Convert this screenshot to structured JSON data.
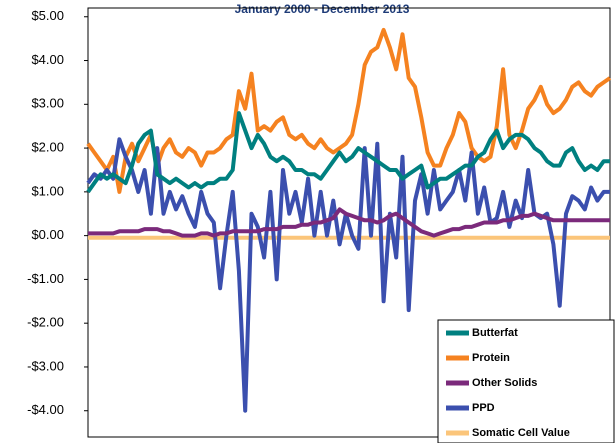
{
  "chart_data": {
    "type": "line",
    "title": "January 2000 - December 2013",
    "categories": [
      null,
      null,
      null,
      null,
      null,
      null,
      null,
      null,
      null,
      null,
      null,
      null,
      null,
      null,
      null,
      null,
      null,
      null,
      null,
      null,
      null,
      null,
      null,
      null,
      null,
      null,
      null,
      null,
      null,
      null,
      null,
      null,
      null,
      null,
      null,
      null,
      null,
      null,
      null,
      null,
      null,
      null,
      null,
      null,
      null,
      null,
      null,
      null,
      null,
      null,
      null,
      null,
      null,
      null,
      null,
      null,
      null,
      null,
      null,
      null,
      null,
      null,
      null,
      null,
      null,
      null,
      null,
      null,
      null,
      null,
      null,
      null,
      null,
      null,
      null,
      null,
      null,
      null,
      null,
      null,
      null,
      null,
      null,
      null
    ],
    "series": [
      {
        "name": "Butterfat",
        "color": "#008080",
        "values": [
          1.0,
          1.2,
          1.4,
          1.3,
          1.4,
          1.3,
          1.2,
          1.6,
          2.1,
          2.3,
          2.4,
          1.4,
          1.3,
          1.2,
          1.3,
          1.2,
          1.1,
          1.2,
          1.1,
          1.2,
          1.2,
          1.3,
          1.3,
          1.5,
          2.8,
          2.4,
          2.0,
          2.3,
          2.1,
          1.8,
          1.7,
          1.8,
          1.7,
          1.5,
          1.5,
          1.4,
          1.4,
          1.3,
          1.5,
          1.7,
          1.9,
          1.7,
          1.8,
          2.0,
          1.9,
          1.8,
          1.7,
          1.6,
          1.5,
          1.5,
          1.3,
          1.4,
          1.5,
          1.6,
          1.1,
          1.2,
          1.3,
          1.3,
          1.4,
          1.5,
          1.6,
          1.6,
          1.8,
          1.9,
          2.2,
          2.4,
          2.0,
          2.2,
          2.3,
          2.3,
          2.2,
          2.0,
          1.9,
          1.7,
          1.6,
          1.6,
          1.9,
          2.0,
          1.7,
          1.5,
          1.6,
          1.5,
          1.7,
          1.7
        ]
      },
      {
        "name": "Protein",
        "color": "#f58220",
        "values": [
          2.1,
          1.9,
          1.7,
          1.5,
          1.8,
          1.0,
          1.8,
          2.1,
          1.7,
          2.0,
          2.3,
          1.6,
          2.0,
          2.2,
          1.9,
          1.8,
          2.0,
          1.9,
          1.6,
          1.9,
          1.9,
          2.0,
          2.2,
          2.3,
          3.3,
          2.9,
          3.7,
          2.4,
          2.5,
          2.4,
          2.6,
          2.7,
          2.3,
          2.2,
          2.3,
          2.1,
          2.0,
          2.2,
          2.0,
          1.9,
          2.0,
          2.1,
          2.3,
          3.0,
          3.9,
          4.2,
          4.3,
          4.7,
          4.3,
          3.8,
          4.6,
          3.6,
          3.4,
          2.7,
          1.9,
          1.6,
          1.6,
          2.0,
          2.3,
          2.8,
          2.6,
          2.0,
          1.8,
          1.7,
          1.8,
          2.5,
          3.8,
          2.3,
          2.0,
          2.4,
          2.9,
          3.1,
          3.4,
          3.0,
          2.8,
          2.9,
          3.1,
          3.4,
          3.5,
          3.3,
          3.2,
          3.4,
          3.5,
          3.6
        ]
      },
      {
        "name": "Other Solids",
        "color": "#7b2a7b",
        "values": [
          0.05,
          0.05,
          0.05,
          0.05,
          0.05,
          0.1,
          0.1,
          0.1,
          0.1,
          0.15,
          0.15,
          0.15,
          0.1,
          0.1,
          0.05,
          0.0,
          0.0,
          0.0,
          0.05,
          0.05,
          0.0,
          0.05,
          0.05,
          0.1,
          0.1,
          0.1,
          0.1,
          0.1,
          0.15,
          0.15,
          0.15,
          0.2,
          0.2,
          0.2,
          0.25,
          0.25,
          0.3,
          0.3,
          0.35,
          0.4,
          0.6,
          0.5,
          0.45,
          0.4,
          0.35,
          0.35,
          0.3,
          0.35,
          0.45,
          0.5,
          0.4,
          0.3,
          0.2,
          0.1,
          0.05,
          0.0,
          0.05,
          0.1,
          0.15,
          0.15,
          0.2,
          0.2,
          0.25,
          0.3,
          0.3,
          0.3,
          0.35,
          0.35,
          0.4,
          0.45,
          0.45,
          0.5,
          0.45,
          0.4,
          0.35,
          0.35,
          0.35,
          0.35,
          0.35,
          0.35,
          0.35,
          0.35,
          0.35,
          0.35
        ]
      },
      {
        "name": "PPD",
        "color": "#3b4fae",
        "values": [
          1.2,
          1.4,
          1.3,
          1.5,
          1.3,
          2.2,
          1.8,
          1.5,
          1.0,
          1.5,
          0.5,
          2.0,
          0.5,
          1.0,
          0.6,
          0.9,
          0.5,
          0.2,
          1.0,
          0.5,
          0.3,
          -1.2,
          0.0,
          1.0,
          -0.8,
          -4.0,
          0.5,
          0.2,
          -0.5,
          1.0,
          -1.0,
          1.5,
          0.5,
          1.0,
          0.3,
          1.3,
          0.0,
          1.0,
          0.0,
          0.8,
          -0.2,
          0.5,
          0.0,
          -0.3,
          2.0,
          0.0,
          2.1,
          -1.5,
          0.5,
          -0.5,
          1.8,
          -1.7,
          0.8,
          1.4,
          0.5,
          1.5,
          0.6,
          0.8,
          1.0,
          1.5,
          0.8,
          1.9,
          0.5,
          1.1,
          0.3,
          0.4,
          1.0,
          0.2,
          0.8,
          0.4,
          1.5,
          0.5,
          0.4,
          0.5,
          -0.2,
          -1.6,
          0.5,
          0.9,
          0.8,
          0.6,
          1.1,
          0.8,
          1.0,
          1.0
        ]
      },
      {
        "name": "Somatic Cell Value",
        "color": "#fbc57a",
        "values": [
          -0.05,
          -0.05,
          -0.05,
          -0.05,
          -0.05,
          -0.05,
          -0.05,
          -0.05,
          -0.05,
          -0.05,
          -0.05,
          -0.05,
          -0.05,
          -0.05,
          -0.05,
          -0.05,
          -0.05,
          -0.05,
          -0.05,
          -0.05,
          -0.05,
          -0.05,
          -0.05,
          -0.05,
          -0.05,
          -0.05,
          -0.05,
          -0.05,
          -0.05,
          -0.05,
          -0.05,
          -0.05,
          -0.05,
          -0.05,
          -0.05,
          -0.05,
          -0.05,
          -0.05,
          -0.05,
          -0.05,
          -0.05,
          -0.05,
          -0.05,
          -0.05,
          -0.05,
          -0.05,
          -0.05,
          -0.05,
          -0.05,
          -0.05,
          -0.05,
          -0.05,
          -0.05,
          -0.05,
          -0.05,
          -0.05,
          -0.05,
          -0.05,
          -0.05,
          -0.05,
          -0.05,
          -0.05,
          -0.05,
          -0.05,
          -0.05,
          -0.05,
          -0.05,
          -0.05,
          -0.05,
          -0.05,
          -0.05,
          -0.05,
          -0.05,
          -0.05,
          -0.05,
          -0.05,
          -0.05,
          -0.05,
          -0.05,
          -0.05,
          -0.05,
          -0.05,
          -0.05,
          -0.05
        ]
      }
    ],
    "ylim": [
      -4.6,
      5.2
    ],
    "yticks": [
      {
        "value": 5,
        "label": "$5.00"
      },
      {
        "value": 4,
        "label": "$4.00"
      },
      {
        "value": 3,
        "label": "$3.00"
      },
      {
        "value": 2,
        "label": "$2.00"
      },
      {
        "value": 1,
        "label": "$1.00"
      },
      {
        "value": 0,
        "label": "$0.00"
      },
      {
        "value": -1,
        "label": "-$1.00"
      },
      {
        "value": -2,
        "label": "-$2.00"
      },
      {
        "value": -3,
        "label": "-$3.00"
      },
      {
        "value": -4,
        "label": "-$4.00"
      }
    ],
    "grid": false,
    "legend": "lower right"
  }
}
